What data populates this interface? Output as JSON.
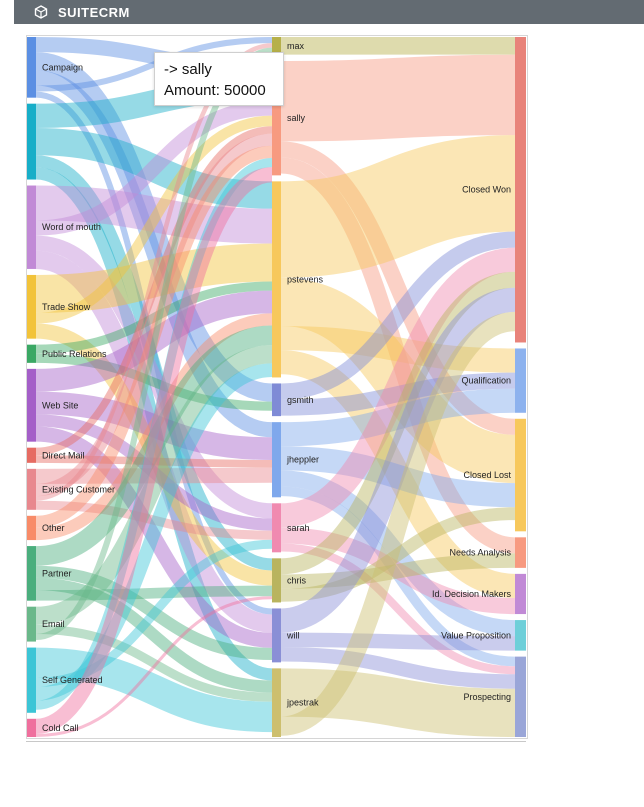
{
  "app": {
    "brand": "SUITECRM",
    "logo_icon": "suitecrm-cube-icon"
  },
  "tooltip": {
    "line1": "-> sally",
    "line2": "Amount: 50000"
  },
  "chart_data": {
    "type": "sankey",
    "title": "",
    "columns": [
      {
        "level": "lead_source",
        "nodes": [
          {
            "name": "Campaign",
            "color": "#5b8fe3",
            "value": 4
          },
          {
            "name": "",
            "color": "#17aec8",
            "value": 5
          },
          {
            "name": "Word of mouth",
            "color": "#c18ad6",
            "value": 5.5
          },
          {
            "name": "Trade Show",
            "color": "#f2c33a",
            "value": 4.2
          },
          {
            "name": "Public Relations",
            "color": "#3aa864",
            "value": 1.2
          },
          {
            "name": "Web Site",
            "color": "#a45fc8",
            "value": 4.8
          },
          {
            "name": "Direct Mail",
            "color": "#e66b62",
            "value": 1
          },
          {
            "name": "Existing Customer",
            "color": "#e8888e",
            "value": 2.7
          },
          {
            "name": "Other",
            "color": "#f88b68",
            "value": 1.6
          },
          {
            "name": "Partner",
            "color": "#4aae7d",
            "value": 3.6
          },
          {
            "name": "Email",
            "color": "#6ab88a",
            "value": 2.3
          },
          {
            "name": "Self Generated",
            "color": "#3cc5d6",
            "value": 4.3
          },
          {
            "name": "Cold Call",
            "color": "#ef6f9d",
            "value": 1.2
          }
        ]
      },
      {
        "level": "assigned_user",
        "nodes": [
          {
            "name": "max",
            "color": "#b6b04a",
            "value": 1.1
          },
          {
            "name": "sally",
            "color": "#f79a80",
            "value": 7
          },
          {
            "name": "pstevens",
            "color": "#f7c85c",
            "value": 12
          },
          {
            "name": "gsmith",
            "color": "#7f8bd6",
            "value": 2
          },
          {
            "name": "jheppler",
            "color": "#7fa8ec",
            "value": 4.6
          },
          {
            "name": "sarah",
            "color": "#f08ab0",
            "value": 3
          },
          {
            "name": "chris",
            "color": "#b9b45e",
            "value": 2.7
          },
          {
            "name": "will",
            "color": "#8a8fd6",
            "value": 3.3
          },
          {
            "name": "jpestrak",
            "color": "#cdbf6e",
            "value": 4.2
          }
        ]
      },
      {
        "level": "sales_stage",
        "nodes": [
          {
            "name": "Closed Won",
            "color": "#e8837a",
            "value": 19
          },
          {
            "name": "Qualification",
            "color": "#8db2ee",
            "value": 4
          },
          {
            "name": "Closed Lost",
            "color": "#f7c85c",
            "value": 7
          },
          {
            "name": "Needs Analysis",
            "color": "#f79a80",
            "value": 1.9
          },
          {
            "name": "Id. Decision Makers",
            "color": "#c18ad6",
            "value": 2.5
          },
          {
            "name": "Value Proposition",
            "color": "#6ecfd9",
            "value": 1.9
          },
          {
            "name": "Prospecting",
            "color": "#9aa6d8",
            "value": 5
          }
        ]
      }
    ],
    "links": [
      [
        "Campaign",
        "sally",
        1
      ],
      [
        "Campaign",
        "gsmith",
        1.2
      ],
      [
        "Campaign",
        "jheppler",
        1
      ],
      [
        "Campaign",
        "max",
        0.4
      ],
      [
        "Campaign",
        "will",
        0.4
      ],
      [
        "",
        "sally",
        1.6
      ],
      [
        "",
        "pstevens",
        1.8
      ],
      [
        "",
        "chris",
        0.8
      ],
      [
        "",
        "jpestrak",
        0.8
      ],
      [
        "Word of mouth",
        "pstevens",
        2.3
      ],
      [
        "Word of mouth",
        "sally",
        1
      ],
      [
        "Word of mouth",
        "sarah",
        1
      ],
      [
        "Word of mouth",
        "will",
        1.2
      ],
      [
        "Trade Show",
        "pstevens",
        2.5
      ],
      [
        "Trade Show",
        "sally",
        0.7
      ],
      [
        "Trade Show",
        "chris",
        1
      ],
      [
        "Public Relations",
        "pstevens",
        0.6
      ],
      [
        "Public Relations",
        "gsmith",
        0.6
      ],
      [
        "Web Site",
        "pstevens",
        1.5
      ],
      [
        "Web Site",
        "jheppler",
        1.5
      ],
      [
        "Web Site",
        "sarah",
        0.8
      ],
      [
        "Web Site",
        "will",
        1
      ],
      [
        "Direct Mail",
        "sally",
        0.5
      ],
      [
        "Direct Mail",
        "jheppler",
        0.5
      ],
      [
        "Existing Customer",
        "jheppler",
        1
      ],
      [
        "Existing Customer",
        "sally",
        0.8
      ],
      [
        "Existing Customer",
        "max",
        0.3
      ],
      [
        "Existing Customer",
        "sarah",
        0.6
      ],
      [
        "Other",
        "sally",
        0.8
      ],
      [
        "Other",
        "pstevens",
        0.8
      ],
      [
        "Partner",
        "pstevens",
        1.3
      ],
      [
        "Partner",
        "will",
        0.8
      ],
      [
        "Partner",
        "jpestrak",
        0.8
      ],
      [
        "Partner",
        "chris",
        0.7
      ],
      [
        "Email",
        "pstevens",
        1.2
      ],
      [
        "Email",
        "jpestrak",
        0.6
      ],
      [
        "Email",
        "max",
        0.4
      ],
      [
        "Self Generated",
        "jpestrak",
        2
      ],
      [
        "Self Generated",
        "sarah",
        0.6
      ],
      [
        "Self Generated",
        "pstevens",
        0.9
      ],
      [
        "Self Generated",
        "sally",
        0.6
      ],
      [
        "Cold Call",
        "sally",
        1
      ],
      [
        "Cold Call",
        "chris",
        0.2
      ],
      [
        "max",
        "Closed Won",
        1.1
      ],
      [
        "sally",
        "Closed Won",
        5
      ],
      [
        "sally",
        "Closed Lost",
        1
      ],
      [
        "sally",
        "Needs Analysis",
        1
      ],
      [
        "pstevens",
        "Closed Won",
        6
      ],
      [
        "pstevens",
        "Closed Lost",
        3
      ],
      [
        "pstevens",
        "Qualification",
        1.5
      ],
      [
        "pstevens",
        "Id. Decision Makers",
        1.5
      ],
      [
        "gsmith",
        "Closed Won",
        1
      ],
      [
        "gsmith",
        "Qualification",
        1
      ],
      [
        "jheppler",
        "Qualification",
        1.5
      ],
      [
        "jheppler",
        "Closed Lost",
        1.5
      ],
      [
        "jheppler",
        "Value Proposition",
        1
      ],
      [
        "jheppler",
        "Prospecting",
        0.6
      ],
      [
        "sarah",
        "Closed Won",
        1.5
      ],
      [
        "sarah",
        "Id. Decision Makers",
        1
      ],
      [
        "sarah",
        "Prospecting",
        0.5
      ],
      [
        "chris",
        "Closed Won",
        1
      ],
      [
        "chris",
        "Needs Analysis",
        0.9
      ],
      [
        "chris",
        "Closed Lost",
        0.8
      ],
      [
        "will",
        "Closed Won",
        1.5
      ],
      [
        "will",
        "Value Proposition",
        0.9
      ],
      [
        "will",
        "Prospecting",
        0.9
      ],
      [
        "jpestrak",
        "Prospecting",
        3
      ],
      [
        "jpestrak",
        "Closed Won",
        1.2
      ]
    ]
  }
}
